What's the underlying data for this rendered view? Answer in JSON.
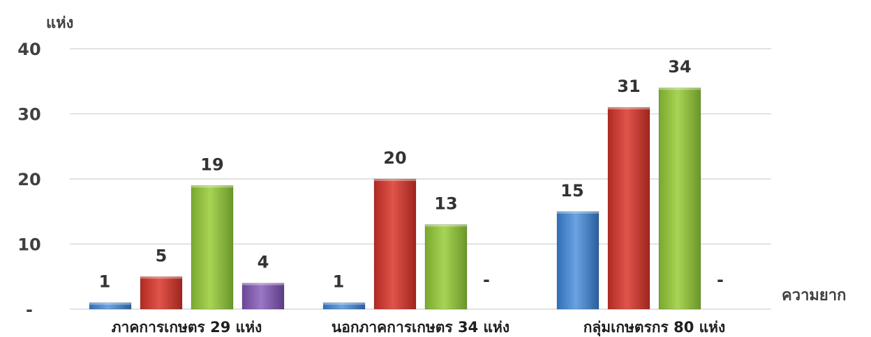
{
  "chart_data": {
    "type": "bar",
    "title": "",
    "ylabel": "แห่ง",
    "xlabel": "ความยาก",
    "ylim": [
      0,
      40
    ],
    "yticks": [
      0,
      10,
      20,
      30,
      40
    ],
    "ytick_labels": [
      "-",
      "10",
      "20",
      "30",
      "40"
    ],
    "categories": [
      "ภาคการเกษตร 29 แห่ง",
      "นอกภาคการเกษตร 34 แห่ง",
      "กลุ่มเกษตรกร 80 แห่ง"
    ],
    "series": [
      {
        "color": "#4a86c8",
        "values": [
          1,
          1,
          15
        ]
      },
      {
        "color": "#c0392b",
        "values": [
          5,
          20,
          31
        ]
      },
      {
        "color": "#8ab83c",
        "values": [
          19,
          13,
          34
        ]
      },
      {
        "color": "#7e5aa8",
        "values": [
          4,
          0,
          0
        ]
      }
    ],
    "data_labels": [
      [
        "1",
        "5",
        "19",
        "4"
      ],
      [
        "1",
        "20",
        "13",
        "-"
      ],
      [
        "15",
        "31",
        "34",
        "-"
      ]
    ],
    "grid": true,
    "legend": "none"
  }
}
